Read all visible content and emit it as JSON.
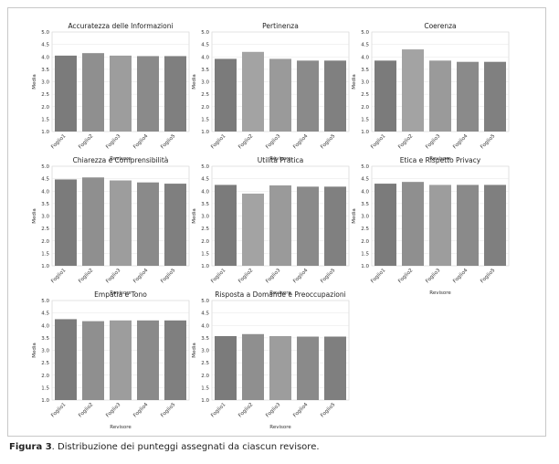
{
  "caption": {
    "label": "Figura 3",
    "text": ". Distribuzione dei punteggi assegnati da ciascun revisore."
  },
  "chart_data": [
    {
      "type": "bar",
      "title": "Accuratezza delle Informazioni",
      "xlabel": "Revisore",
      "ylabel": "Media",
      "ylim": [
        1.0,
        5.0
      ],
      "yticks": [
        "1.0",
        "1.5",
        "2.0",
        "2.5",
        "3.0",
        "3.5",
        "4.0",
        "4.5",
        "5.0"
      ],
      "categories": [
        "Foglio1",
        "Foglio2",
        "Foglio3",
        "Foglio4",
        "Foglio5"
      ],
      "values": [
        4.05,
        4.15,
        4.05,
        4.03,
        4.03
      ],
      "grid": true,
      "bar_colors": [
        "#7b7b7b",
        "#8f8f8f",
        "#9d9d9d",
        "#8a8a8a",
        "#7f7f7f"
      ]
    },
    {
      "type": "bar",
      "title": "Pertinenza",
      "xlabel": "Revisore",
      "ylabel": "Media",
      "ylim": [
        1.0,
        5.0
      ],
      "yticks": [
        "1.0",
        "1.5",
        "2.0",
        "2.5",
        "3.0",
        "3.5",
        "4.0",
        "4.5",
        "5.0"
      ],
      "categories": [
        "Foglio1",
        "Foglio2",
        "Foglio3",
        "Foglio4",
        "Foglio5"
      ],
      "values": [
        3.92,
        4.2,
        3.92,
        3.85,
        3.85
      ],
      "grid": true,
      "bar_colors": [
        "#7b7b7b",
        "#a3a3a3",
        "#9a9a9a",
        "#8a8a8a",
        "#808080"
      ]
    },
    {
      "type": "bar",
      "title": "Coerenza",
      "xlabel": "Revisore",
      "ylabel": "Media",
      "ylim": [
        1.0,
        5.0
      ],
      "yticks": [
        "1.0",
        "1.5",
        "2.0",
        "2.5",
        "3.0",
        "3.5",
        "4.0",
        "4.5",
        "5.0"
      ],
      "categories": [
        "Foglio1",
        "Foglio2",
        "Foglio3",
        "Foglio4",
        "Foglio5"
      ],
      "values": [
        3.85,
        4.3,
        3.85,
        3.8,
        3.8
      ],
      "grid": true,
      "bar_colors": [
        "#7b7b7b",
        "#a3a3a3",
        "#9a9a9a",
        "#8a8a8a",
        "#808080"
      ]
    },
    {
      "type": "bar",
      "title": "Chiarezza e Comprensibilità",
      "xlabel": "Revisore",
      "ylabel": "Media",
      "ylim": [
        1.0,
        5.0
      ],
      "yticks": [
        "1.0",
        "1.5",
        "2.0",
        "2.5",
        "3.0",
        "3.5",
        "4.0",
        "4.5",
        "5.0"
      ],
      "categories": [
        "Foglio1",
        "Foglio2",
        "Foglio3",
        "Foglio4",
        "Foglio5"
      ],
      "values": [
        4.47,
        4.55,
        4.43,
        4.35,
        4.3
      ],
      "grid": true,
      "bar_colors": [
        "#7b7b7b",
        "#8f8f8f",
        "#9d9d9d",
        "#8a8a8a",
        "#7f7f7f"
      ]
    },
    {
      "type": "bar",
      "title": "Utilità Pratica",
      "xlabel": "Revisore",
      "ylabel": "Media",
      "ylim": [
        1.0,
        5.0
      ],
      "yticks": [
        "1.0",
        "1.5",
        "2.0",
        "2.5",
        "3.0",
        "3.5",
        "4.0",
        "4.5",
        "5.0"
      ],
      "categories": [
        "Foglio1",
        "Foglio2",
        "Foglio3",
        "Foglio4",
        "Foglio5"
      ],
      "values": [
        4.25,
        3.9,
        4.23,
        4.18,
        4.18
      ],
      "grid": true,
      "bar_colors": [
        "#7b7b7b",
        "#a3a3a3",
        "#9a9a9a",
        "#8a8a8a",
        "#808080"
      ]
    },
    {
      "type": "bar",
      "title": "Etica e Rispetto Privacy",
      "xlabel": "Revisore",
      "ylabel": "Media",
      "ylim": [
        1.0,
        5.0
      ],
      "yticks": [
        "1.0",
        "1.5",
        "2.0",
        "2.5",
        "3.0",
        "3.5",
        "4.0",
        "4.5",
        "5.0"
      ],
      "categories": [
        "Foglio1",
        "Foglio2",
        "Foglio3",
        "Foglio4",
        "Foglio5"
      ],
      "values": [
        4.3,
        4.37,
        4.25,
        4.25,
        4.25
      ],
      "grid": true,
      "bar_colors": [
        "#7b7b7b",
        "#8f8f8f",
        "#9d9d9d",
        "#8a8a8a",
        "#7f7f7f"
      ]
    },
    {
      "type": "bar",
      "title": "Empatia e Tono",
      "xlabel": "Revisore",
      "ylabel": "Media",
      "ylim": [
        1.0,
        5.0
      ],
      "yticks": [
        "1.0",
        "1.5",
        "2.0",
        "2.5",
        "3.0",
        "3.5",
        "4.0",
        "4.5",
        "5.0"
      ],
      "categories": [
        "Foglio1",
        "Foglio2",
        "Foglio3",
        "Foglio4",
        "Foglio5"
      ],
      "values": [
        4.25,
        4.17,
        4.2,
        4.2,
        4.2
      ],
      "grid": true,
      "bar_colors": [
        "#7b7b7b",
        "#8f8f8f",
        "#9d9d9d",
        "#8a8a8a",
        "#7f7f7f"
      ]
    },
    {
      "type": "bar",
      "title": "Risposta a Domande e Preoccupazioni",
      "xlabel": "Revisore",
      "ylabel": "Media",
      "ylim": [
        1.0,
        5.0
      ],
      "yticks": [
        "1.0",
        "1.5",
        "2.0",
        "2.5",
        "3.0",
        "3.5",
        "4.0",
        "4.5",
        "5.0"
      ],
      "categories": [
        "Foglio1",
        "Foglio2",
        "Foglio3",
        "Foglio4",
        "Foglio5"
      ],
      "values": [
        3.57,
        3.65,
        3.57,
        3.55,
        3.55
      ],
      "grid": true,
      "bar_colors": [
        "#7b7b7b",
        "#8f8f8f",
        "#9d9d9d",
        "#8a8a8a",
        "#7f7f7f"
      ]
    }
  ]
}
